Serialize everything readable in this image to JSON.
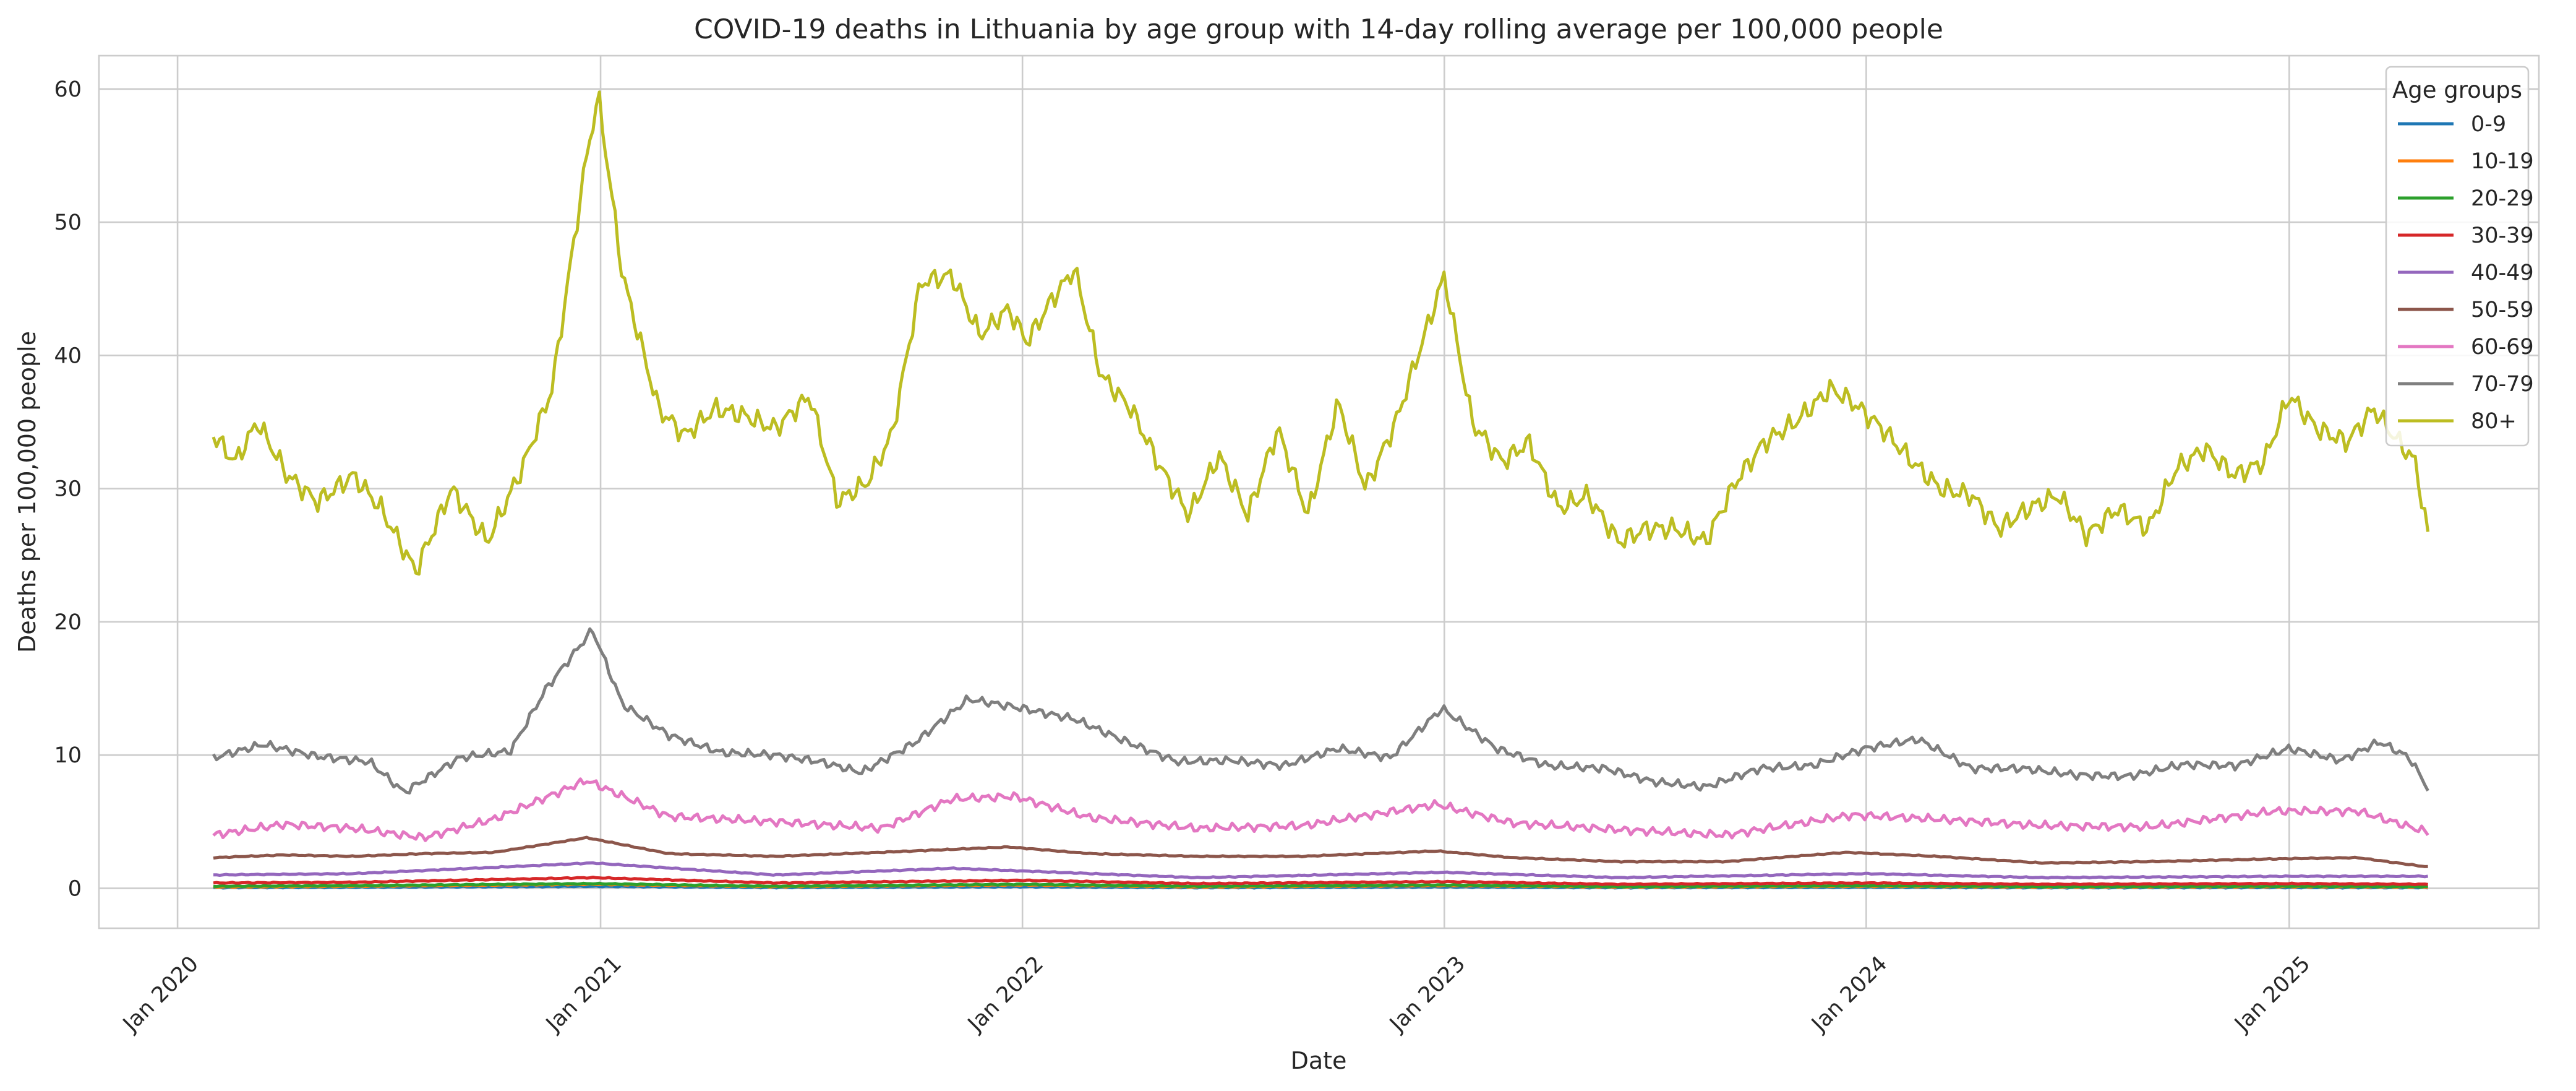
{
  "chart_data": {
    "type": "line",
    "title": "COVID-19 deaths in Lithuania by age group with 14-day rolling average per 100,000 people",
    "xlabel": "Date",
    "ylabel": "Deaths per 100,000 people",
    "xlim": [
      "2019-10-25",
      "2025-08-05"
    ],
    "ylim": [
      -3,
      62.5
    ],
    "grid": true,
    "legend": {
      "title": "Age groups",
      "position": "top-right"
    },
    "x_ticks": [
      {
        "date": "2020-01-01",
        "label": "Jan 2020"
      },
      {
        "date": "2021-01-01",
        "label": "Jan 2021"
      },
      {
        "date": "2022-01-01",
        "label": "Jan 2022"
      },
      {
        "date": "2023-01-01",
        "label": "Jan 2023"
      },
      {
        "date": "2024-01-01",
        "label": "Jan 2024"
      },
      {
        "date": "2025-01-01",
        "label": "Jan 2025"
      }
    ],
    "y_ticks": [
      0,
      10,
      20,
      30,
      40,
      50,
      60
    ],
    "series": [
      {
        "name": "0-9",
        "color": "#1f77b4",
        "x": [
          "2020-02-01",
          "2020-06-01",
          "2020-12-25",
          "2021-06-01",
          "2022-01-01",
          "2022-06-01",
          "2023-01-01",
          "2023-06-01",
          "2024-01-01",
          "2024-06-01",
          "2025-01-01",
          "2025-05-01"
        ],
        "y": [
          0.05,
          0.08,
          0.15,
          0.06,
          0.12,
          0.05,
          0.1,
          0.05,
          0.08,
          0.05,
          0.06,
          0.05
        ]
      },
      {
        "name": "10-19",
        "color": "#ff7f0e",
        "x": [
          "2020-02-01",
          "2020-06-01",
          "2020-12-25",
          "2021-06-01",
          "2022-01-01",
          "2022-06-01",
          "2023-01-01",
          "2023-06-01",
          "2024-01-01",
          "2024-06-01",
          "2025-01-01",
          "2025-05-01"
        ],
        "y": [
          0.1,
          0.15,
          0.3,
          0.12,
          0.25,
          0.1,
          0.2,
          0.1,
          0.15,
          0.1,
          0.12,
          0.1
        ]
      },
      {
        "name": "20-29",
        "color": "#2ca02c",
        "x": [
          "2020-02-01",
          "2020-06-01",
          "2020-12-25",
          "2021-06-01",
          "2022-01-01",
          "2022-06-01",
          "2023-01-01",
          "2023-06-01",
          "2024-01-01",
          "2024-06-01",
          "2025-01-01",
          "2025-05-01"
        ],
        "y": [
          0.15,
          0.2,
          0.35,
          0.15,
          0.3,
          0.15,
          0.25,
          0.12,
          0.2,
          0.12,
          0.15,
          0.12
        ]
      },
      {
        "name": "30-39",
        "color": "#d62728",
        "x": [
          "2020-02-01",
          "2020-06-01",
          "2020-12-25",
          "2021-06-01",
          "2022-01-01",
          "2022-06-01",
          "2023-01-01",
          "2023-06-01",
          "2024-01-01",
          "2024-06-01",
          "2025-01-01",
          "2025-05-01"
        ],
        "y": [
          0.4,
          0.45,
          0.8,
          0.4,
          0.6,
          0.35,
          0.5,
          0.3,
          0.4,
          0.3,
          0.35,
          0.3
        ]
      },
      {
        "name": "40-49",
        "color": "#9467bd",
        "x": [
          "2020-02-01",
          "2020-06-01",
          "2020-12-25",
          "2021-06-01",
          "2021-11-01",
          "2022-01-01",
          "2022-06-01",
          "2023-01-01",
          "2023-06-01",
          "2024-01-01",
          "2024-06-01",
          "2025-01-01",
          "2025-05-01"
        ],
        "y": [
          1.0,
          1.1,
          1.9,
          1.0,
          1.5,
          1.3,
          0.8,
          1.2,
          0.8,
          1.1,
          0.8,
          0.9,
          0.9
        ]
      },
      {
        "name": "50-59",
        "color": "#8c564b",
        "x": [
          "2020-02-01",
          "2020-04-01",
          "2020-06-01",
          "2020-08-01",
          "2020-10-01",
          "2020-12-20",
          "2021-03-01",
          "2021-06-01",
          "2021-09-01",
          "2021-12-20",
          "2022-03-01",
          "2022-06-01",
          "2022-09-01",
          "2022-12-25",
          "2023-03-01",
          "2023-06-01",
          "2023-09-01",
          "2023-12-15",
          "2024-03-01",
          "2024-06-01",
          "2024-09-01",
          "2024-12-15",
          "2025-03-01",
          "2025-05-01"
        ],
        "y": [
          2.3,
          2.5,
          2.4,
          2.6,
          2.7,
          3.8,
          2.6,
          2.4,
          2.7,
          3.1,
          2.6,
          2.4,
          2.4,
          2.8,
          2.3,
          2.0,
          2.0,
          2.7,
          2.4,
          1.9,
          2.0,
          2.2,
          2.3,
          1.6
        ]
      },
      {
        "name": "60-69",
        "color": "#e377c2",
        "x": [
          "2020-02-01",
          "2020-04-01",
          "2020-06-01",
          "2020-08-01",
          "2020-10-01",
          "2020-12-20",
          "2021-03-01",
          "2021-06-01",
          "2021-09-01",
          "2021-11-01",
          "2021-12-25",
          "2022-03-01",
          "2022-06-01",
          "2022-09-01",
          "2022-12-25",
          "2023-03-01",
          "2023-06-01",
          "2023-09-01",
          "2023-12-20",
          "2024-03-01",
          "2024-06-01",
          "2024-09-01",
          "2024-12-20",
          "2025-03-01",
          "2025-05-01"
        ],
        "y": [
          4.0,
          4.8,
          4.5,
          3.8,
          5.2,
          8.1,
          5.4,
          5.0,
          4.5,
          6.7,
          6.9,
          5.3,
          4.5,
          4.7,
          6.3,
          4.9,
          4.4,
          4.0,
          5.5,
          5.2,
          4.7,
          4.6,
          5.8,
          5.8,
          4.2
        ]
      },
      {
        "name": "70-79",
        "color": "#7f7f7f",
        "x": [
          "2020-02-01",
          "2020-03-15",
          "2020-05-01",
          "2020-06-15",
          "2020-07-15",
          "2020-09-01",
          "2020-10-15",
          "2020-11-15",
          "2020-12-25",
          "2021-01-20",
          "2021-03-01",
          "2021-04-15",
          "2021-06-01",
          "2021-07-10",
          "2021-08-15",
          "2021-10-01",
          "2021-11-15",
          "2022-01-01",
          "2022-02-15",
          "2022-04-01",
          "2022-05-15",
          "2022-07-01",
          "2022-08-15",
          "2022-10-01",
          "2022-11-15",
          "2022-12-30",
          "2023-02-15",
          "2023-04-01",
          "2023-05-20",
          "2023-07-01",
          "2023-08-15",
          "2023-10-01",
          "2023-11-15",
          "2023-12-31",
          "2024-02-15",
          "2024-04-01",
          "2024-05-15",
          "2024-07-01",
          "2024-08-15",
          "2024-10-01",
          "2024-11-15",
          "2025-01-01",
          "2025-02-15",
          "2025-03-20",
          "2025-04-15",
          "2025-05-01"
        ],
        "y": [
          9.8,
          10.8,
          9.9,
          9.5,
          7.2,
          9.8,
          10.3,
          15.0,
          19.4,
          13.8,
          11.5,
          10.2,
          10.0,
          9.5,
          8.7,
          11.0,
          14.2,
          13.5,
          12.7,
          11.0,
          9.5,
          9.6,
          9.2,
          10.5,
          9.8,
          13.5,
          10.5,
          9.2,
          9.0,
          8.0,
          7.6,
          9.0,
          9.2,
          10.5,
          11.2,
          9.0,
          9.0,
          8.5,
          8.4,
          9.3,
          9.2,
          10.5,
          9.6,
          11.0,
          9.8,
          7.5
        ]
      },
      {
        "name": "80+",
        "color": "#bcbd22",
        "x": [
          "2020-02-01",
          "2020-02-20",
          "2020-03-10",
          "2020-04-05",
          "2020-05-01",
          "2020-06-01",
          "2020-06-25",
          "2020-07-25",
          "2020-08-25",
          "2020-09-25",
          "2020-10-25",
          "2020-11-20",
          "2020-12-20",
          "2020-12-30",
          "2021-01-20",
          "2021-02-20",
          "2021-03-15",
          "2021-04-10",
          "2021-05-05",
          "2021-06-01",
          "2021-07-01",
          "2021-07-25",
          "2021-08-20",
          "2021-09-10",
          "2021-10-05",
          "2021-11-01",
          "2021-11-25",
          "2021-12-20",
          "2022-01-05",
          "2022-01-25",
          "2022-02-15",
          "2022-03-10",
          "2022-04-05",
          "2022-05-01",
          "2022-05-25",
          "2022-06-20",
          "2022-07-15",
          "2022-08-10",
          "2022-09-05",
          "2022-10-01",
          "2022-10-25",
          "2022-11-20",
          "2023-01-01",
          "2023-01-25",
          "2023-02-20",
          "2023-03-15",
          "2023-04-10",
          "2023-05-05",
          "2023-06-01",
          "2023-06-25",
          "2023-07-20",
          "2023-08-15",
          "2023-09-10",
          "2023-10-05",
          "2023-11-01",
          "2023-12-01",
          "2023-12-20",
          "2024-01-15",
          "2024-02-10",
          "2024-03-05",
          "2024-04-01",
          "2024-04-25",
          "2024-05-20",
          "2024-06-15",
          "2024-07-10",
          "2024-08-05",
          "2024-09-01",
          "2024-09-25",
          "2024-10-20",
          "2024-11-15",
          "2024-12-10",
          "2025-01-01",
          "2025-01-25",
          "2025-02-20",
          "2025-03-15",
          "2025-04-01",
          "2025-04-20",
          "2025-05-01"
        ],
        "y": [
          34.0,
          32.0,
          35.0,
          31.0,
          29.0,
          31.0,
          28.5,
          23.8,
          30.0,
          26.0,
          31.5,
          37.5,
          55.0,
          59.5,
          46.0,
          36.0,
          34.0,
          36.0,
          35.5,
          34.5,
          37.0,
          29.0,
          30.5,
          34.0,
          45.5,
          46.0,
          41.5,
          43.5,
          41.0,
          44.0,
          46.5,
          38.5,
          36.0,
          31.5,
          28.0,
          32.5,
          28.0,
          34.5,
          28.0,
          36.5,
          30.0,
          35.0,
          46.0,
          35.0,
          32.0,
          33.5,
          28.5,
          29.5,
          26.0,
          27.0,
          27.0,
          26.0,
          30.5,
          33.5,
          35.0,
          37.5,
          36.5,
          34.5,
          32.0,
          30.0,
          29.5,
          27.0,
          28.5,
          29.5,
          26.5,
          28.5,
          27.0,
          31.5,
          33.0,
          31.0,
          32.0,
          37.0,
          34.5,
          33.5,
          36.0,
          34.0,
          32.0,
          26.5
        ]
      }
    ]
  }
}
